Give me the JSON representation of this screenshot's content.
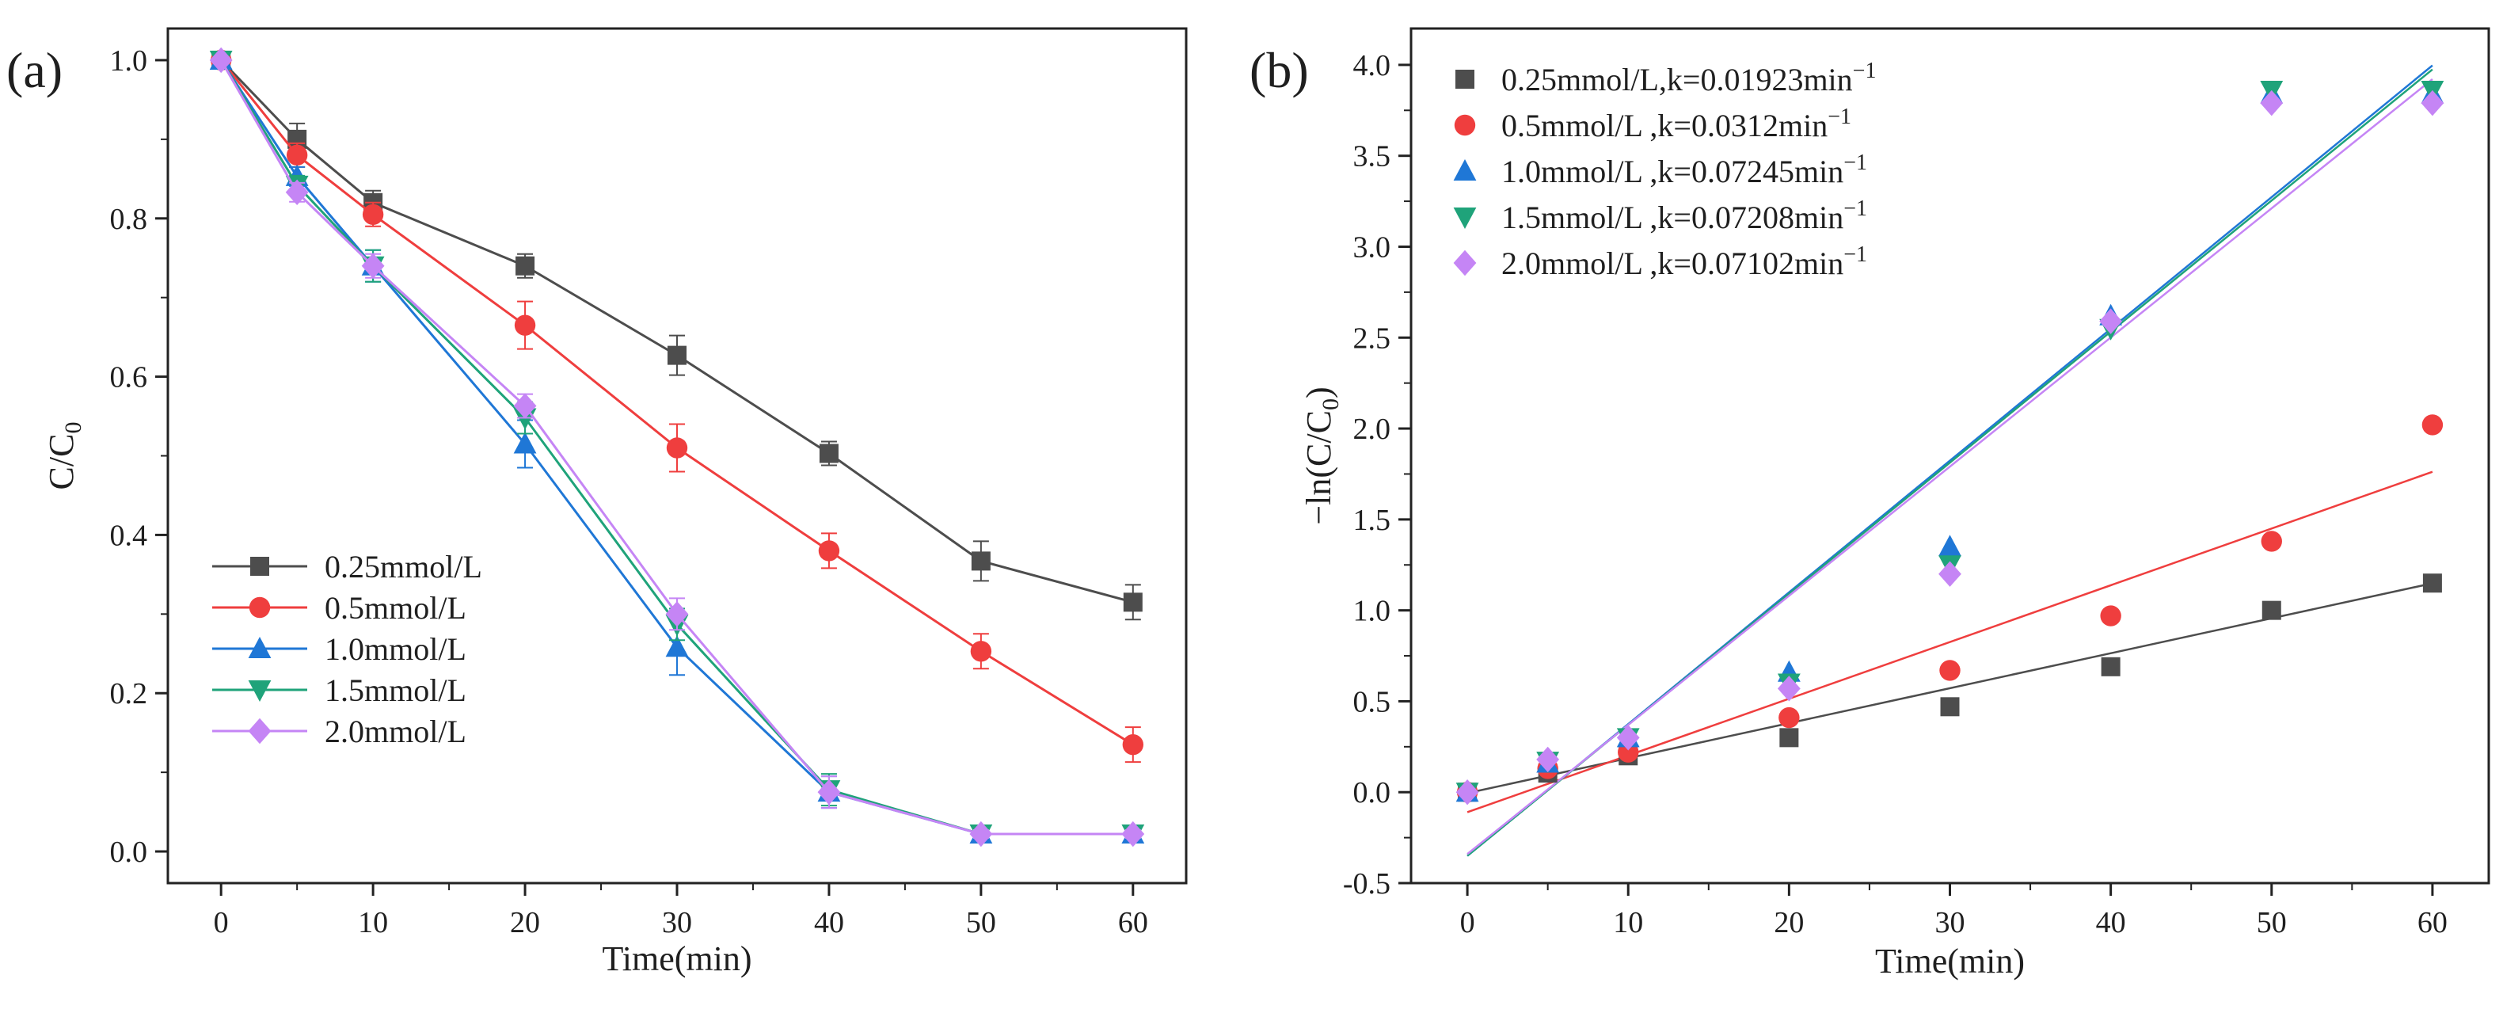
{
  "chart_data": [
    {
      "panel": "(a)",
      "type": "line",
      "title": "",
      "xlabel": "Time(min)",
      "ylabel": "C/C",
      "ylabel_sub": "0",
      "xlim": [
        -3.5,
        63.5
      ],
      "ylim": [
        -0.04,
        1.04
      ],
      "xticks": [
        0,
        10,
        20,
        30,
        40,
        50,
        60
      ],
      "yticks": [
        0.0,
        0.2,
        0.4,
        0.6,
        0.8,
        1.0
      ],
      "x": [
        0,
        5,
        10,
        20,
        30,
        40,
        50,
        60
      ],
      "legend_position": "bottom-left",
      "series": [
        {
          "name": "0.25mmol/L",
          "color": "#4d4d4d",
          "marker": "square",
          "values": [
            1.0,
            0.9,
            0.82,
            0.74,
            0.627,
            0.503,
            0.367,
            0.315
          ],
          "errors": [
            0.0,
            0.02,
            0.015,
            0.015,
            0.025,
            0.015,
            0.025,
            0.022
          ]
        },
        {
          "name": "0.5mmol/L",
          "color": "#ef3e3e",
          "marker": "circle",
          "values": [
            1.0,
            0.88,
            0.805,
            0.665,
            0.51,
            0.38,
            0.253,
            0.135
          ],
          "errors": [
            0.0,
            0.015,
            0.015,
            0.03,
            0.03,
            0.022,
            0.022,
            0.022
          ]
        },
        {
          "name": "1.0mmol/L",
          "color": "#1f77d6",
          "marker": "triangle-up",
          "values": [
            1.0,
            0.853,
            0.74,
            0.515,
            0.258,
            0.075,
            0.022,
            0.022
          ],
          "errors": [
            0.0,
            0.012,
            0.02,
            0.03,
            0.035,
            0.02,
            0.005,
            0.005
          ]
        },
        {
          "name": "1.5mmol/L",
          "color": "#1fa37a",
          "marker": "triangle-down",
          "values": [
            1.0,
            0.842,
            0.74,
            0.548,
            0.287,
            0.078,
            0.022,
            0.022
          ],
          "errors": [
            0.0,
            0.012,
            0.02,
            0.02,
            0.02,
            0.02,
            0.005,
            0.005
          ]
        },
        {
          "name": "2.0mmol/L",
          "color": "#c585f5",
          "marker": "diamond",
          "values": [
            1.0,
            0.833,
            0.74,
            0.563,
            0.3,
            0.075,
            0.022,
            0.022
          ],
          "errors": [
            0.0,
            0.012,
            0.015,
            0.015,
            0.02,
            0.02,
            0.005,
            0.005
          ]
        }
      ]
    },
    {
      "panel": "(b)",
      "type": "scatter",
      "title": "",
      "xlabel": "Time(min)",
      "ylabel": "−ln(C/C",
      "ylabel_sub": "0",
      "ylabel_close": ")",
      "xlim": [
        -3.5,
        63.5
      ],
      "ylim": [
        -0.5,
        4.2
      ],
      "xticks": [
        0,
        10,
        20,
        30,
        40,
        50,
        60
      ],
      "yticks": [
        -0.5,
        0.0,
        0.5,
        1.0,
        1.5,
        2.0,
        2.5,
        3.0,
        3.5,
        4.0
      ],
      "x": [
        0,
        5,
        10,
        20,
        30,
        40,
        50,
        60
      ],
      "legend_position": "top-left",
      "fit_x_range": [
        0,
        60
      ],
      "series": [
        {
          "name": "0.25mmol/L,k=0.01923min",
          "sup": "−1",
          "color": "#4d4d4d",
          "marker": "square",
          "values": [
            0,
            0.105,
            0.2,
            0.3,
            0.47,
            0.69,
            1.0,
            1.15
          ],
          "fit": {
            "slope": 0.01923,
            "intercept": -0.005
          }
        },
        {
          "name": "0.5mmol/L ,k=0.0312min",
          "sup": "−1",
          "color": "#ef3e3e",
          "marker": "circle",
          "values": [
            0,
            0.13,
            0.22,
            0.41,
            0.67,
            0.97,
            1.38,
            2.02
          ],
          "fit": {
            "slope": 0.0312,
            "intercept": -0.11
          }
        },
        {
          "name": "1.0mmol/L ,k=0.07245min",
          "sup": "−1",
          "color": "#1f77d6",
          "marker": "triangle-up",
          "values": [
            0,
            0.16,
            0.3,
            0.66,
            1.35,
            2.62,
            3.84,
            3.84
          ],
          "fit": {
            "slope": 0.07245,
            "intercept": -0.35
          }
        },
        {
          "name": "1.5mmol/L ,k=0.07208min",
          "sup": "−1",
          "color": "#1fa37a",
          "marker": "triangle-down",
          "values": [
            0,
            0.17,
            0.3,
            0.6,
            1.25,
            2.55,
            3.86,
            3.86
          ],
          "fit": {
            "slope": 0.07208,
            "intercept": -0.35
          }
        },
        {
          "name": "2.0mmol/L ,k=0.07102min",
          "sup": "−1",
          "color": "#c585f5",
          "marker": "diamond",
          "values": [
            0,
            0.18,
            0.3,
            0.57,
            1.2,
            2.59,
            3.79,
            3.79
          ],
          "fit": {
            "slope": 0.07102,
            "intercept": -0.34
          }
        }
      ]
    }
  ]
}
